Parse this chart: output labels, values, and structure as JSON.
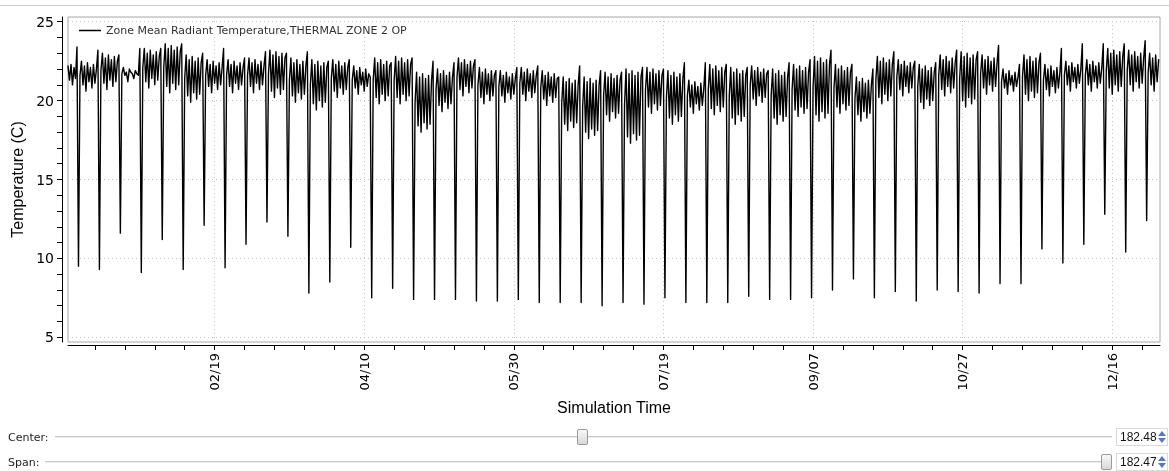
{
  "chart_data": {
    "type": "line",
    "xlabel": "Simulation Time",
    "ylabel": "Temperature (C)",
    "grid": true,
    "legend": "top left",
    "xlim": [
      "--01-01",
      "--12-31T23:00"
    ],
    "ylim": [
      4.7,
      25.3
    ],
    "xticks": [
      {
        "value": "--01-10",
        "label": null
      },
      {
        "value": "--01-20",
        "label": null
      },
      {
        "value": "--01-30",
        "label": null
      },
      {
        "value": "--02-09",
        "label": null
      },
      {
        "value": "--02-19",
        "label": "02/19"
      },
      {
        "value": "--03-01",
        "label": null
      },
      {
        "value": "--03-11",
        "label": null
      },
      {
        "value": "--03-21",
        "label": null
      },
      {
        "value": "--03-31",
        "label": null
      },
      {
        "value": "--04-10",
        "label": "04/10"
      },
      {
        "value": "--04-20",
        "label": null
      },
      {
        "value": "--04-30",
        "label": null
      },
      {
        "value": "--05-10",
        "label": null
      },
      {
        "value": "--05-20",
        "label": null
      },
      {
        "value": "--05-30",
        "label": "05/30"
      },
      {
        "value": "--06-09",
        "label": null
      },
      {
        "value": "--06-19",
        "label": null
      },
      {
        "value": "--06-29",
        "label": null
      },
      {
        "value": "--07-09",
        "label": null
      },
      {
        "value": "--07-19",
        "label": "07/19"
      },
      {
        "value": "--07-29",
        "label": null
      },
      {
        "value": "--08-08",
        "label": null
      },
      {
        "value": "--08-18",
        "label": null
      },
      {
        "value": "--08-28",
        "label": null
      },
      {
        "value": "--09-07",
        "label": "09/07"
      },
      {
        "value": "--09-17",
        "label": null
      },
      {
        "value": "--09-27",
        "label": null
      },
      {
        "value": "--10-07",
        "label": null
      },
      {
        "value": "--10-17",
        "label": null
      },
      {
        "value": "--10-27",
        "label": "10/27"
      },
      {
        "value": "--11-06",
        "label": null
      },
      {
        "value": "--11-16",
        "label": null
      },
      {
        "value": "--11-26",
        "label": null
      },
      {
        "value": "--12-06",
        "label": null
      },
      {
        "value": "--12-16",
        "label": "12/16"
      },
      {
        "value": "--12-26",
        "label": null
      }
    ],
    "yticks": [
      5,
      {
        "value": 6,
        "label": null
      },
      {
        "value": 7,
        "label": null
      },
      {
        "value": 8,
        "label": null
      },
      {
        "value": 9,
        "label": null
      },
      10,
      {
        "value": 11,
        "label": null
      },
      {
        "value": 12,
        "label": null
      },
      {
        "value": 13,
        "label": null
      },
      {
        "value": 14,
        "label": null
      },
      15,
      {
        "value": 16,
        "label": null
      },
      {
        "value": 17,
        "label": null
      },
      {
        "value": 18,
        "label": null
      },
      {
        "value": 19,
        "label": null
      },
      20,
      {
        "value": 21,
        "label": null
      },
      {
        "value": 22,
        "label": null
      },
      {
        "value": 23,
        "label": null
      },
      {
        "value": 24,
        "label": null
      },
      25
    ],
    "annotations": [
      "Center:",
      "182.48",
      "Span:",
      "182.47"
    ],
    "x": [
      "--01-01",
      "--01-01T12:00",
      "--01-02",
      "--01-02T12:00",
      "--01-03",
      "--01-03T12:00",
      "--01-04",
      "--01-04T12:00",
      "--01-05",
      "--01-05T12:00",
      "--01-06",
      "--01-06T12:00",
      "--01-07",
      "--01-07T12:00",
      "--01-08",
      "--01-08T12:00",
      "--01-09",
      "--01-09T12:00",
      "--01-10",
      "--01-10T12:00",
      "--01-11",
      "--01-11T12:00",
      "--01-12",
      "--01-12T12:00",
      "--01-13",
      "--01-13T12:00",
      "--01-14",
      "--01-14T12:00",
      "--01-15",
      "--01-15T12:00",
      "--01-16",
      "--01-16T12:00",
      "--01-17",
      "--01-17T12:00",
      "--01-18",
      "--01-18T12:00",
      "--01-19",
      "--01-19T12:00",
      "--01-20",
      "--01-20T12:00",
      "--01-21",
      "--01-21T12:00",
      "--01-22",
      "--01-22T12:00",
      "--01-23",
      "--01-23T12:00",
      "--01-24",
      "--01-24T12:00",
      "--01-25",
      "--01-25T12:00",
      "--01-26",
      "--01-26T12:00",
      "--01-27",
      "--01-27T12:00",
      "--01-28",
      "--01-28T12:00",
      "--01-29",
      "--01-29T12:00",
      "--01-30",
      "--01-30T12:00",
      "--01-31",
      "--01-31T12:00",
      "--02-01",
      "--02-01T12:00",
      "--02-02",
      "--02-02T12:00",
      "--02-03",
      "--02-03T12:00",
      "--02-04",
      "--02-04T12:00",
      "--02-05",
      "--02-05T12:00",
      "--02-06",
      "--02-06T12:00",
      "--02-07",
      "--02-07T12:00",
      "--02-08",
      "--02-08T12:00",
      "--02-09",
      "--02-09T12:00",
      "--02-10",
      "--02-10T12:00",
      "--02-11",
      "--02-11T12:00",
      "--02-12",
      "--02-12T12:00",
      "--02-13",
      "--02-13T12:00",
      "--02-14",
      "--02-14T12:00",
      "--02-15",
      "--02-15T12:00",
      "--02-16",
      "--02-16T12:00",
      "--02-17",
      "--02-17T12:00",
      "--02-18",
      "--02-18T12:00",
      "--02-19",
      "--02-19T12:00",
      "--02-20",
      "--02-20T12:00",
      "--02-21",
      "--02-21T12:00",
      "--02-22",
      "--02-22T12:00",
      "--02-23",
      "--02-23T12:00",
      "--02-24",
      "--02-24T12:00",
      "--02-25",
      "--02-25T12:00",
      "--02-26",
      "--02-26T12:00",
      "--02-27",
      "--02-27T12:00",
      "--02-28",
      "--02-28T12:00",
      "--03-01",
      "--03-01T12:00",
      "--03-02",
      "--03-02T12:00",
      "--03-03",
      "--03-03T12:00",
      "--03-04",
      "--03-04T12:00",
      "--03-05",
      "--03-05T12:00",
      "--03-06",
      "--03-06T12:00",
      "--03-07",
      "--03-07T12:00",
      "--03-08",
      "--03-08T12:00",
      "--03-09",
      "--03-09T12:00",
      "--03-10",
      "--03-10T12:00",
      "--03-11",
      "--03-11T12:00",
      "--03-12",
      "--03-12T12:00",
      "--03-13",
      "--03-13T12:00",
      "--03-14",
      "--03-14T12:00",
      "--03-15",
      "--03-15T12:00",
      "--03-16",
      "--03-16T12:00",
      "--03-17",
      "--03-17T12:00",
      "--03-18",
      "--03-18T12:00",
      "--03-19",
      "--03-19T12:00",
      "--03-20",
      "--03-20T12:00",
      "--03-21",
      "--03-21T12:00",
      "--03-22",
      "--03-22T12:00",
      "--03-23",
      "--03-23T12:00",
      "--03-24",
      "--03-24T12:00",
      "--03-25",
      "--03-25T12:00",
      "--03-26",
      "--03-26T12:00",
      "--03-27",
      "--03-27T12:00",
      "--03-28",
      "--03-28T12:00",
      "--03-29",
      "--03-29T12:00",
      "--03-30",
      "--03-30T12:00",
      "--03-31",
      "--03-31T12:00",
      "--04-01",
      "--04-01T12:00",
      "--04-02",
      "--04-02T12:00",
      "--04-03",
      "--04-03T12:00",
      "--04-04",
      "--04-04T12:00",
      "--04-05",
      "--04-05T12:00",
      "--04-06",
      "--04-06T12:00",
      "--04-07",
      "--04-07T12:00",
      "--04-08",
      "--04-08T12:00",
      "--04-09",
      "--04-09T12:00",
      "--04-10",
      "--04-10T12:00",
      "--04-11",
      "--04-11T12:00",
      "--04-12",
      "--04-12T12:00",
      "--04-13",
      "--04-13T12:00",
      "--04-14",
      "--04-14T12:00",
      "--04-15",
      "--04-15T12:00",
      "--04-16",
      "--04-16T12:00",
      "--04-17",
      "--04-17T12:00",
      "--04-18",
      "--04-18T12:00",
      "--04-19",
      "--04-19T12:00",
      "--04-20",
      "--04-20T12:00",
      "--04-21",
      "--04-21T12:00",
      "--04-22",
      "--04-22T12:00",
      "--04-23",
      "--04-23T12:00",
      "--04-24",
      "--04-24T12:00",
      "--04-25",
      "--04-25T12:00",
      "--04-26",
      "--04-26T12:00",
      "--04-27",
      "--04-27T12:00",
      "--04-28",
      "--04-28T12:00",
      "--04-29",
      "--04-29T12:00",
      "--04-30",
      "--04-30T12:00",
      "--05-01",
      "--05-01T12:00",
      "--05-02",
      "--05-02T12:00",
      "--05-03",
      "--05-03T12:00",
      "--05-04",
      "--05-04T12:00",
      "--05-05",
      "--05-05T12:00",
      "--05-06",
      "--05-06T12:00",
      "--05-07",
      "--05-07T12:00",
      "--05-08",
      "--05-08T12:00",
      "--05-09",
      "--05-09T12:00",
      "--05-10",
      "--05-10T12:00",
      "--05-11",
      "--05-11T12:00",
      "--05-12",
      "--05-12T12:00",
      "--05-13",
      "--05-13T12:00",
      "--05-14",
      "--05-14T12:00",
      "--05-15",
      "--05-15T12:00",
      "--05-16",
      "--05-16T12:00",
      "--05-17",
      "--05-17T12:00",
      "--05-18",
      "--05-18T12:00",
      "--05-19",
      "--05-19T12:00",
      "--05-20",
      "--05-20T12:00",
      "--05-21",
      "--05-21T12:00",
      "--05-22",
      "--05-22T12:00",
      "--05-23",
      "--05-23T12:00",
      "--05-24",
      "--05-24T12:00",
      "--05-25",
      "--05-25T12:00",
      "--05-26",
      "--05-26T12:00",
      "--05-27",
      "--05-27T12:00",
      "--05-28",
      "--05-28T12:00",
      "--05-29",
      "--05-29T12:00",
      "--05-30",
      "--05-30T12:00",
      "--05-31",
      "--05-31T12:00",
      "--06-01",
      "--06-01T12:00",
      "--06-02",
      "--06-02T12:00",
      "--06-03",
      "--06-03T12:00",
      "--06-04",
      "--06-04T12:00",
      "--06-05",
      "--06-05T12:00",
      "--06-06",
      "--06-06T12:00",
      "--06-07",
      "--06-07T12:00",
      "--06-08",
      "--06-08T12:00",
      "--06-09",
      "--06-09T12:00",
      "--06-10",
      "--06-10T12:00",
      "--06-11",
      "--06-11T12:00",
      "--06-12",
      "--06-12T12:00",
      "--06-13",
      "--06-13T12:00",
      "--06-14",
      "--06-14T12:00",
      "--06-15",
      "--06-15T12:00",
      "--06-16",
      "--06-16T12:00",
      "--06-17",
      "--06-17T12:00",
      "--06-18",
      "--06-18T12:00",
      "--06-19",
      "--06-19T12:00",
      "--06-20",
      "--06-20T12:00",
      "--06-21",
      "--06-21T12:00",
      "--06-22",
      "--06-22T12:00",
      "--06-23",
      "--06-23T12:00",
      "--06-24",
      "--06-24T12:00",
      "--06-25",
      "--06-25T12:00",
      "--06-26",
      "--06-26T12:00",
      "--06-27",
      "--06-27T12:00",
      "--06-28",
      "--06-28T12:00",
      "--06-29",
      "--06-29T12:00",
      "--06-30",
      "--06-30T12:00",
      "--07-01",
      "--07-01T12:00",
      "--07-02",
      "--07-02T12:00",
      "--07-03",
      "--07-03T12:00",
      "--07-04",
      "--07-04T12:00",
      "--07-05",
      "--07-05T12:00",
      "--07-06",
      "--07-06T12:00",
      "--07-07",
      "--07-07T12:00",
      "--07-08",
      "--07-08T12:00",
      "--07-09",
      "--07-09T12:00",
      "--07-10",
      "--07-10T12:00",
      "--07-11",
      "--07-11T12:00",
      "--07-12",
      "--07-12T12:00",
      "--07-13",
      "--07-13T12:00",
      "--07-14",
      "--07-14T12:00",
      "--07-15",
      "--07-15T12:00",
      "--07-16",
      "--07-16T12:00",
      "--07-17",
      "--07-17T12:00",
      "--07-18",
      "--07-18T12:00",
      "--07-19",
      "--07-19T12:00",
      "--07-20",
      "--07-20T12:00",
      "--07-21",
      "--07-21T12:00",
      "--07-22",
      "--07-22T12:00",
      "--07-23",
      "--07-23T12:00",
      "--07-24",
      "--07-24T12:00",
      "--07-25",
      "--07-25T12:00",
      "--07-26",
      "--07-26T12:00",
      "--07-27",
      "--07-27T12:00",
      "--07-28",
      "--07-28T12:00",
      "--07-29",
      "--07-29T12:00",
      "--07-30",
      "--07-30T12:00",
      "--07-31",
      "--07-31T12:00",
      "--08-01",
      "--08-01T12:00",
      "--08-02",
      "--08-02T12:00",
      "--08-03",
      "--08-03T12:00",
      "--08-04",
      "--08-04T12:00",
      "--08-05",
      "--08-05T12:00",
      "--08-06",
      "--08-06T12:00",
      "--08-07",
      "--08-07T12:00",
      "--08-08",
      "--08-08T12:00",
      "--08-09",
      "--08-09T12:00",
      "--08-10",
      "--08-10T12:00",
      "--08-11",
      "--08-11T12:00",
      "--08-12",
      "--08-12T12:00",
      "--08-13",
      "--08-13T12:00",
      "--08-14",
      "--08-14T12:00",
      "--08-15",
      "--08-15T12:00",
      "--08-16",
      "--08-16T12:00",
      "--08-17",
      "--08-17T12:00",
      "--08-18",
      "--08-18T12:00",
      "--08-19",
      "--08-19T12:00",
      "--08-20",
      "--08-20T12:00",
      "--08-21",
      "--08-21T12:00",
      "--08-22",
      "--08-22T12:00",
      "--08-23",
      "--08-23T12:00",
      "--08-24",
      "--08-24T12:00",
      "--08-25",
      "--08-25T12:00",
      "--08-26",
      "--08-26T12:00",
      "--08-27",
      "--08-27T12:00",
      "--08-28",
      "--08-28T12:00",
      "--08-29",
      "--08-29T12:00",
      "--08-30",
      "--08-30T12:00",
      "--08-31",
      "--08-31T12:00",
      "--09-01",
      "--09-01T12:00",
      "--09-02",
      "--09-02T12:00",
      "--09-03",
      "--09-03T12:00",
      "--09-04",
      "--09-04T12:00",
      "--09-05",
      "--09-05T12:00",
      "--09-06",
      "--09-06T12:00",
      "--09-07",
      "--09-07T12:00",
      "--09-08",
      "--09-08T12:00",
      "--09-09",
      "--09-09T12:00",
      "--09-10",
      "--09-10T12:00",
      "--09-11",
      "--09-11T12:00",
      "--09-12",
      "--09-12T12:00",
      "--09-13",
      "--09-13T12:00",
      "--09-14",
      "--09-14T12:00",
      "--09-15",
      "--09-15T12:00",
      "--09-16",
      "--09-16T12:00",
      "--09-17",
      "--09-17T12:00",
      "--09-18",
      "--09-18T12:00",
      "--09-19",
      "--09-19T12:00",
      "--09-20",
      "--09-20T12:00",
      "--09-21",
      "--09-21T12:00",
      "--09-22",
      "--09-22T12:00",
      "--09-23",
      "--09-23T12:00",
      "--09-24",
      "--09-24T12:00",
      "--09-25",
      "--09-25T12:00",
      "--09-26",
      "--09-26T12:00",
      "--09-27",
      "--09-27T12:00",
      "--09-28",
      "--09-28T12:00",
      "--09-29",
      "--09-29T12:00",
      "--09-30",
      "--09-30T12:00",
      "--10-01",
      "--10-01T12:00",
      "--10-02",
      "--10-02T12:00",
      "--10-03",
      "--10-03T12:00",
      "--10-04",
      "--10-04T12:00",
      "--10-05",
      "--10-05T12:00",
      "--10-06",
      "--10-06T12:00",
      "--10-07",
      "--10-07T12:00",
      "--10-08",
      "--10-08T12:00",
      "--10-09",
      "--10-09T12:00",
      "--10-10",
      "--10-10T12:00",
      "--10-11",
      "--10-11T12:00",
      "--10-12",
      "--10-12T12:00",
      "--10-13",
      "--10-13T12:00",
      "--10-14",
      "--10-14T12:00",
      "--10-15",
      "--10-15T12:00",
      "--10-16",
      "--10-16T12:00",
      "--10-17",
      "--10-17T12:00",
      "--10-18",
      "--10-18T12:00",
      "--10-19",
      "--10-19T12:00",
      "--10-20",
      "--10-20T12:00",
      "--10-21",
      "--10-21T12:00",
      "--10-22",
      "--10-22T12:00",
      "--10-23",
      "--10-23T12:00",
      "--10-24",
      "--10-24T12:00",
      "--10-25",
      "--10-25T12:00",
      "--10-26",
      "--10-26T12:00",
      "--10-27",
      "--10-27T12:00",
      "--10-28",
      "--10-28T12:00",
      "--10-29",
      "--10-29T12:00",
      "--10-30",
      "--10-30T12:00",
      "--10-31",
      "--10-31T12:00",
      "--11-01",
      "--11-01T12:00",
      "--11-02",
      "--11-02T12:00",
      "--11-03",
      "--11-03T12:00",
      "--11-04",
      "--11-04T12:00",
      "--11-05",
      "--11-05T12:00",
      "--11-06",
      "--11-06T12:00",
      "--11-07",
      "--11-07T12:00",
      "--11-08",
      "--11-08T12:00",
      "--11-09",
      "--11-09T12:00",
      "--11-10",
      "--11-10T12:00",
      "--11-11",
      "--11-11T12:00",
      "--11-12",
      "--11-12T12:00",
      "--11-13",
      "--11-13T12:00",
      "--11-14",
      "--11-14T12:00",
      "--11-15",
      "--11-15T12:00",
      "--11-16",
      "--11-16T12:00",
      "--11-17",
      "--11-17T12:00",
      "--11-18",
      "--11-18T12:00",
      "--11-19",
      "--11-19T12:00",
      "--11-20",
      "--11-20T12:00",
      "--11-21",
      "--11-21T12:00",
      "--11-22",
      "--11-22T12:00",
      "--11-23",
      "--11-23T12:00",
      "--11-24",
      "--11-24T12:00",
      "--11-25",
      "--11-25T12:00",
      "--11-26",
      "--11-26T12:00",
      "--11-27",
      "--11-27T12:00",
      "--11-28",
      "--11-28T12:00",
      "--11-29",
      "--11-29T12:00",
      "--11-30",
      "--11-30T12:00",
      "--12-01",
      "--12-01T12:00",
      "--12-02",
      "--12-02T12:00",
      "--12-03",
      "--12-03T12:00",
      "--12-04",
      "--12-04T12:00",
      "--12-05",
      "--12-05T12:00",
      "--12-06",
      "--12-06T12:00",
      "--12-07",
      "--12-07T12:00",
      "--12-08",
      "--12-08T12:00",
      "--12-09",
      "--12-09T12:00",
      "--12-10",
      "--12-10T12:00",
      "--12-11",
      "--12-11T12:00",
      "--12-12",
      "--12-12T12:00",
      "--12-13",
      "--12-13T12:00",
      "--12-14",
      "--12-14T12:00",
      "--12-15",
      "--12-15T12:00",
      "--12-16",
      "--12-16T12:00",
      "--12-17",
      "--12-17T12:00",
      "--12-18",
      "--12-18T12:00",
      "--12-19",
      "--12-19T12:00",
      "--12-20",
      "--12-20T12:00",
      "--12-21",
      "--12-21T12:00",
      "--12-22",
      "--12-22T12:00",
      "--12-23",
      "--12-23T12:00",
      "--12-24",
      "--12-24T12:00",
      "--12-25",
      "--12-25T12:00",
      "--12-26",
      "--12-26T12:00",
      "--12-27",
      "--12-27T12:00",
      "--12-28",
      "--12-28T12:00",
      "--12-29",
      "--12-29T12:00",
      "--12-30",
      "--12-30T12:00",
      "--12-31",
      "--12-31T12:00"
    ],
    "series": [
      {
        "name": "Zone Mean Radiant Temperature,THERMAL ZONE 2 OP",
        "color": "#000000",
        "values": [
          22.2,
          21.3,
          22.3,
          21.0,
          22.1,
          21.4,
          23.4,
          9.5,
          21.6,
          22.5,
          21.0,
          22.2,
          20.6,
          22.4,
          21.2,
          22.1,
          20.8,
          22.3,
          21.1,
          22.0,
          23.2,
          9.3,
          21.9,
          23.0,
          21.1,
          22.7,
          20.7,
          22.9,
          21.3,
          22.6,
          20.9,
          22.8,
          21.2,
          22.5,
          22.9,
          11.6,
          21.7,
          22.1,
          21.6,
          21.8,
          21.2,
          22.0,
          21.8,
          21.7,
          21.4,
          21.9,
          21.7,
          21.6,
          23.3,
          9.1,
          22.1,
          23.3,
          21.2,
          23.0,
          20.8,
          23.2,
          21.4,
          22.9,
          21.0,
          23.1,
          21.3,
          22.8,
          23.3,
          11.2,
          22.1,
          23.6,
          20.9,
          23.3,
          20.5,
          23.5,
          21.1,
          23.2,
          20.7,
          23.4,
          21.0,
          23.1,
          23.6,
          9.3,
          21.4,
          22.9,
          20.3,
          22.6,
          19.9,
          22.8,
          20.5,
          22.5,
          20.1,
          22.7,
          20.4,
          22.4,
          23.0,
          12.1,
          21.6,
          22.6,
          20.9,
          22.3,
          20.5,
          22.5,
          21.1,
          22.2,
          20.7,
          22.4,
          21.0,
          22.1,
          23.3,
          9.4,
          21.6,
          22.6,
          20.9,
          22.3,
          20.5,
          22.5,
          21.1,
          22.2,
          20.7,
          22.4,
          21.0,
          22.1,
          22.7,
          10.9,
          21.6,
          22.7,
          20.9,
          22.4,
          20.5,
          22.6,
          21.1,
          22.3,
          20.7,
          22.5,
          21.0,
          22.2,
          23.1,
          12.3,
          21.7,
          23.2,
          20.6,
          22.9,
          20.2,
          23.1,
          20.8,
          22.8,
          20.4,
          23.0,
          20.7,
          22.7,
          23.0,
          11.4,
          21.3,
          22.7,
          20.3,
          22.4,
          19.9,
          22.6,
          20.5,
          22.3,
          20.1,
          22.5,
          20.4,
          22.2,
          23.1,
          7.8,
          21.0,
          22.6,
          19.8,
          22.3,
          19.4,
          22.5,
          20.0,
          22.2,
          19.6,
          22.4,
          19.9,
          22.1,
          22.5,
          8.5,
          21.4,
          22.6,
          20.6,
          22.3,
          20.2,
          22.5,
          20.8,
          22.2,
          20.4,
          22.4,
          20.7,
          22.1,
          22.6,
          10.7,
          21.3,
          22.2,
          20.8,
          21.9,
          20.4,
          22.1,
          21.0,
          21.8,
          20.6,
          22.0,
          20.9,
          21.7,
          21.5,
          7.5,
          21.3,
          22.7,
          20.2,
          22.4,
          19.8,
          22.6,
          20.4,
          22.3,
          20.0,
          22.5,
          20.3,
          22.2,
          22.4,
          8.1,
          21.3,
          22.8,
          20.2,
          22.5,
          19.8,
          22.7,
          20.4,
          22.4,
          20.0,
          22.6,
          20.3,
          22.3,
          22.7,
          7.4,
          19.9,
          21.8,
          18.4,
          21.5,
          18.0,
          21.7,
          18.6,
          21.4,
          18.2,
          21.6,
          18.5,
          21.3,
          22.5,
          7.4,
          20.7,
          22.0,
          19.7,
          21.7,
          19.3,
          21.9,
          19.9,
          21.6,
          19.5,
          21.8,
          19.8,
          21.5,
          22.4,
          7.4,
          21.5,
          22.7,
          20.7,
          22.4,
          20.3,
          22.6,
          20.9,
          22.3,
          20.5,
          22.5,
          20.8,
          22.2,
          22.6,
          7.3,
          21.0,
          22.1,
          20.2,
          21.8,
          19.8,
          22.0,
          20.4,
          21.7,
          20.0,
          21.9,
          20.3,
          21.6,
          21.9,
          7.3,
          20.9,
          21.9,
          20.3,
          21.6,
          19.9,
          21.8,
          20.5,
          21.5,
          20.1,
          21.7,
          20.4,
          21.4,
          22.1,
          7.4,
          21.1,
          22.1,
          20.4,
          21.8,
          20.0,
          22.0,
          20.6,
          21.7,
          20.2,
          21.9,
          20.5,
          21.6,
          22.2,
          7.2,
          20.8,
          21.9,
          20.1,
          21.6,
          19.7,
          21.8,
          20.3,
          21.5,
          19.9,
          21.7,
          20.2,
          21.4,
          21.5,
          7.2,
          19.8,
          21.5,
          18.5,
          21.2,
          18.1,
          21.4,
          18.7,
          21.1,
          18.3,
          21.3,
          18.6,
          21.0,
          22.2,
          7.2,
          19.6,
          21.5,
          18.0,
          21.2,
          17.6,
          21.4,
          18.2,
          21.1,
          17.8,
          21.3,
          18.1,
          21.0,
          21.9,
          7.0,
          20.3,
          21.8,
          19.1,
          21.5,
          18.7,
          21.7,
          19.3,
          21.4,
          18.9,
          21.6,
          19.2,
          21.3,
          21.8,
          7.2,
          19.7,
          22.0,
          17.7,
          21.7,
          17.3,
          21.9,
          17.9,
          21.6,
          17.5,
          21.8,
          17.8,
          21.5,
          22.1,
          7.1,
          20.7,
          22.1,
          19.6,
          21.8,
          19.2,
          22.0,
          19.8,
          21.7,
          19.4,
          21.9,
          19.7,
          21.6,
          22.0,
          7.5,
          20.2,
          21.9,
          18.9,
          21.6,
          18.5,
          21.8,
          19.1,
          21.5,
          18.7,
          21.7,
          19.0,
          21.4,
          22.4,
          7.2,
          20.3,
          21.3,
          19.6,
          21.0,
          19.2,
          21.2,
          19.8,
          20.9,
          19.4,
          21.1,
          19.7,
          20.8,
          22.4,
          7.2,
          20.7,
          22.3,
          19.5,
          22.0,
          19.1,
          22.2,
          19.7,
          21.9,
          19.3,
          22.1,
          19.6,
          21.8,
          22.3,
          7.2,
          20.3,
          22.1,
          18.9,
          21.8,
          18.5,
          22.0,
          19.1,
          21.7,
          18.7,
          21.9,
          19.0,
          21.6,
          22.1,
          7.6,
          21.0,
          22.2,
          20.1,
          21.9,
          19.7,
          22.1,
          20.3,
          21.8,
          19.9,
          22.0,
          20.2,
          21.7,
          21.9,
          7.4,
          20.3,
          22.0,
          18.9,
          21.7,
          18.5,
          21.9,
          19.1,
          21.6,
          18.7,
          21.8,
          19.0,
          21.5,
          22.4,
          7.4,
          20.7,
          22.3,
          19.4,
          22.0,
          19.0,
          22.2,
          19.6,
          21.9,
          19.2,
          22.1,
          19.5,
          21.8,
          22.6,
          7.5,
          20.8,
          22.8,
          19.1,
          22.5,
          18.7,
          22.7,
          19.3,
          22.4,
          18.9,
          22.6,
          19.2,
          22.3,
          23.2,
          8.0,
          20.8,
          22.3,
          19.6,
          22.0,
          19.2,
          22.2,
          19.8,
          21.9,
          19.4,
          22.1,
          19.7,
          21.8,
          22.3,
          8.7,
          20.1,
          21.5,
          19.1,
          21.2,
          18.7,
          21.4,
          19.3,
          21.1,
          18.9,
          21.3,
          19.2,
          21.0,
          22.0,
          7.5,
          21.3,
          22.8,
          20.2,
          22.5,
          19.8,
          22.7,
          20.4,
          22.4,
          20.0,
          22.6,
          20.3,
          22.3,
          23.1,
          7.9,
          21.5,
          22.6,
          20.7,
          22.3,
          20.3,
          22.5,
          20.9,
          22.2,
          20.5,
          22.4,
          20.8,
          22.1,
          22.5,
          7.3,
          20.9,
          22.3,
          19.9,
          22.0,
          19.5,
          22.2,
          20.1,
          21.9,
          19.7,
          22.1,
          20.0,
          21.8,
          22.4,
          8.0,
          21.6,
          22.9,
          20.7,
          22.6,
          20.3,
          22.8,
          20.9,
          22.5,
          20.5,
          22.7,
          20.8,
          22.4,
          23.2,
          7.9,
          21.4,
          23.1,
          20.0,
          22.8,
          19.6,
          23.0,
          20.2,
          22.7,
          19.8,
          22.9,
          20.1,
          22.6,
          23.1,
          7.8,
          21.7,
          22.9,
          20.8,
          22.6,
          20.4,
          22.8,
          21.0,
          22.5,
          20.6,
          22.7,
          20.9,
          22.4,
          23.5,
          8.4,
          21.2,
          22.0,
          20.8,
          21.7,
          20.4,
          21.9,
          21.0,
          21.6,
          20.6,
          21.8,
          20.9,
          21.5,
          22.3,
          8.4,
          21.5,
          22.9,
          20.4,
          22.6,
          20.0,
          22.8,
          20.6,
          22.5,
          20.2,
          22.7,
          20.5,
          22.4,
          23.0,
          10.6,
          21.3,
          22.3,
          20.7,
          22.0,
          20.3,
          22.2,
          20.9,
          21.9,
          20.5,
          22.1,
          20.8,
          21.8,
          23.3,
          9.7,
          21.6,
          22.5,
          21.0,
          22.2,
          20.6,
          22.4,
          21.2,
          22.1,
          20.8,
          22.3,
          21.1,
          22.0,
          23.6,
          10.9,
          21.6,
          22.6,
          21.0,
          22.3,
          20.6,
          22.5,
          21.2,
          22.2,
          20.8,
          22.4,
          21.1,
          22.1,
          23.6,
          12.8,
          21.9,
          23.3,
          20.8,
          23.0,
          20.4,
          23.2,
          21.0,
          22.9,
          20.6,
          23.1,
          20.9,
          22.8,
          23.6,
          10.4,
          21.9,
          23.2,
          21.0,
          22.9,
          20.6,
          23.1,
          21.2,
          22.8,
          20.8,
          23.0,
          21.1,
          22.7,
          23.8,
          12.4,
          21.8,
          23.0,
          21.0,
          22.7,
          20.6,
          22.9,
          21.2,
          22.6
        ]
      }
    ]
  }
}
